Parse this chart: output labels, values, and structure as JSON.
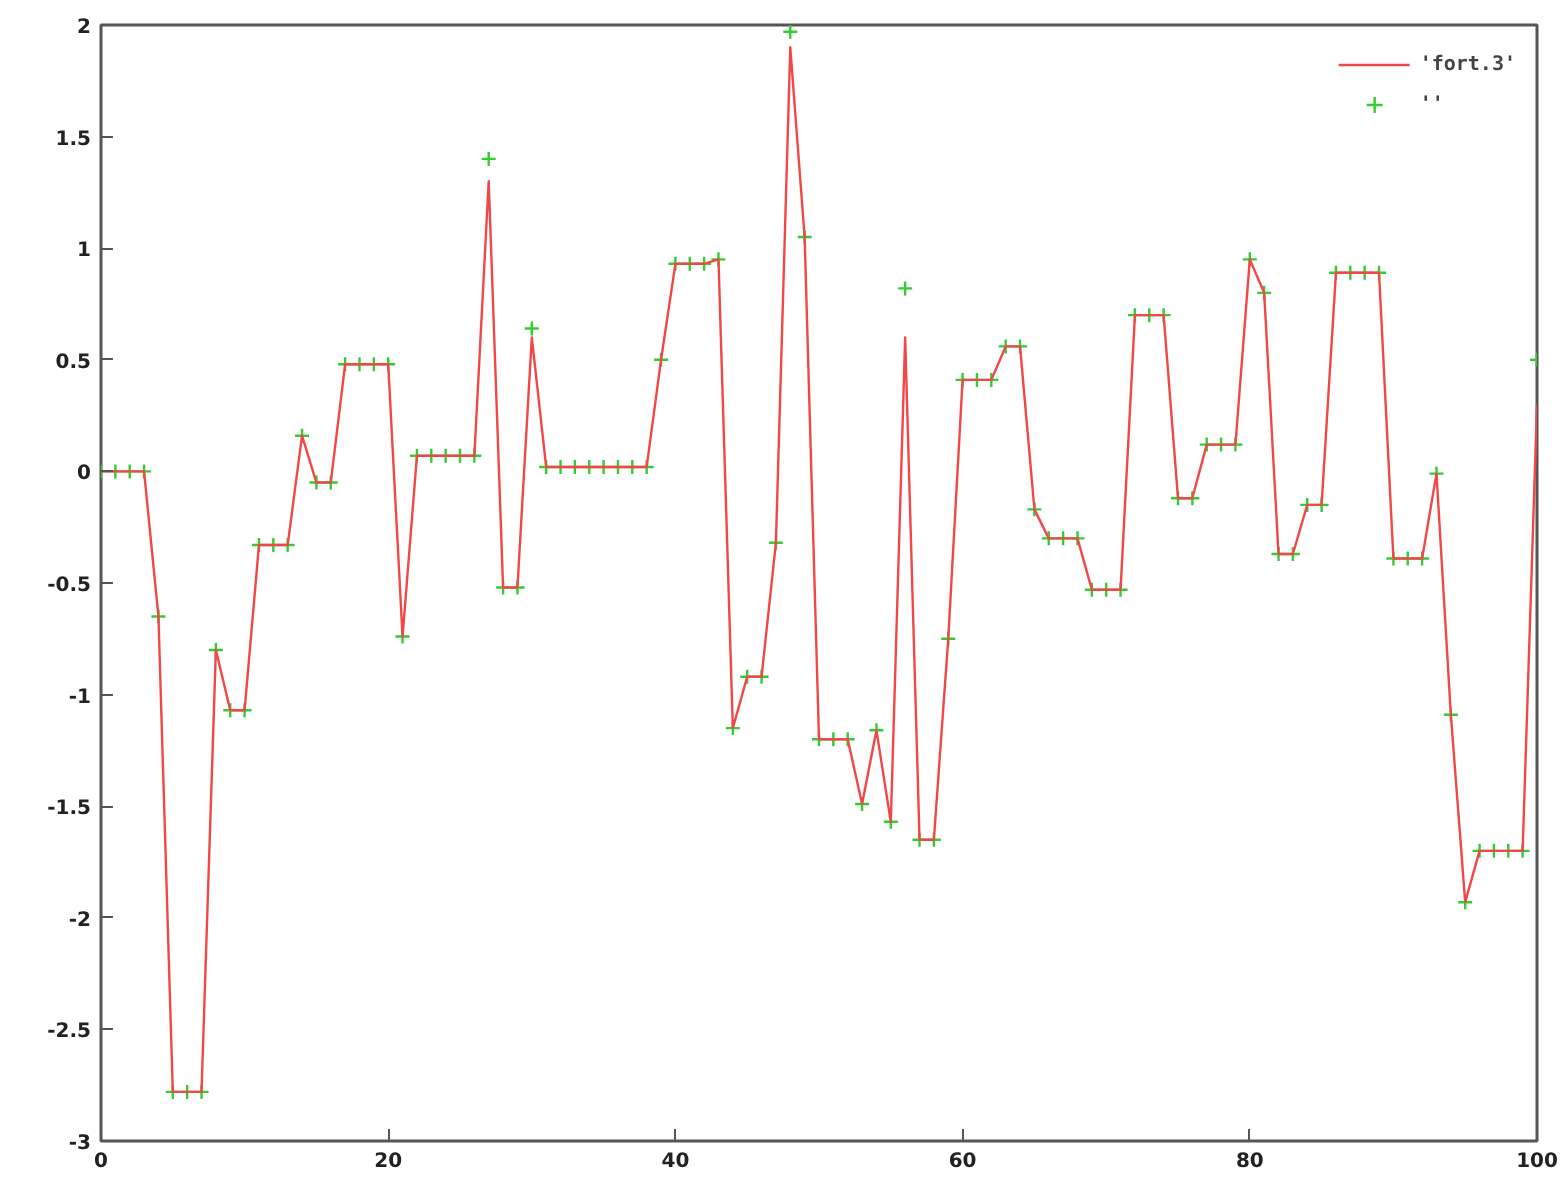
{
  "chart_data": {
    "type": "line",
    "x": [
      0,
      1,
      2,
      3,
      4,
      5,
      6,
      7,
      8,
      9,
      10,
      11,
      12,
      13,
      14,
      15,
      16,
      17,
      18,
      19,
      20,
      21,
      22,
      23,
      24,
      25,
      26,
      27,
      28,
      29,
      30,
      31,
      32,
      33,
      34,
      35,
      36,
      37,
      38,
      39,
      40,
      41,
      42,
      43,
      44,
      45,
      46,
      47,
      48,
      49,
      50,
      51,
      52,
      53,
      54,
      55,
      56,
      57,
      58,
      59,
      60,
      61,
      62,
      63,
      64,
      65,
      66,
      67,
      68,
      69,
      70,
      71,
      72,
      73,
      74,
      75,
      76,
      77,
      78,
      79,
      80,
      81,
      82,
      83,
      84,
      85,
      86,
      87,
      88,
      89,
      90,
      91,
      92,
      93,
      94,
      95,
      96,
      97,
      98,
      99,
      100
    ],
    "series": [
      {
        "name": "'fort.3'",
        "color": "#f04848",
        "marker": "none",
        "line_style": "solid",
        "values": [
          0,
          0,
          0,
          0,
          -0.65,
          -2.78,
          -2.78,
          -2.78,
          -0.8,
          -1.07,
          -1.07,
          -0.33,
          -0.33,
          -0.33,
          0.16,
          -0.05,
          -0.05,
          0.48,
          0.48,
          0.48,
          0.48,
          -0.74,
          0.07,
          0.07,
          0.07,
          0.07,
          0.07,
          1.3,
          -0.52,
          -0.52,
          0.6,
          0.02,
          0.02,
          0.02,
          0.02,
          0.02,
          0.02,
          0.02,
          0.02,
          0.5,
          0.93,
          0.93,
          0.93,
          0.95,
          -1.15,
          -0.92,
          -0.92,
          -0.32,
          1.9,
          1.05,
          -1.2,
          -1.2,
          -1.2,
          -1.49,
          -1.16,
          -1.57,
          0.6,
          -1.65,
          -1.65,
          -0.75,
          0.41,
          0.41,
          0.41,
          0.56,
          0.56,
          -0.17,
          -0.3,
          -0.3,
          -0.3,
          -0.53,
          -0.53,
          -0.53,
          0.7,
          0.7,
          0.7,
          -0.12,
          -0.12,
          0.12,
          0.12,
          0.12,
          0.95,
          0.8,
          -0.37,
          -0.37,
          -0.15,
          -0.15,
          0.89,
          0.89,
          0.89,
          0.89,
          -0.39,
          -0.39,
          -0.39,
          -0.01,
          -1.09,
          -1.93,
          -1.7,
          -1.7,
          -1.7,
          -1.7,
          0.3
        ]
      },
      {
        "name": "''",
        "type": "scatter",
        "color": "#33cc33",
        "marker": "cross",
        "values": [
          0,
          0,
          0,
          0,
          -0.65,
          -2.78,
          -2.78,
          -2.78,
          -0.8,
          -1.07,
          -1.07,
          -0.33,
          -0.33,
          -0.33,
          0.16,
          -0.05,
          -0.05,
          0.48,
          0.48,
          0.48,
          0.48,
          -0.74,
          0.07,
          0.07,
          0.07,
          0.07,
          0.07,
          1.4,
          -0.52,
          -0.52,
          0.64,
          0.02,
          0.02,
          0.02,
          0.02,
          0.02,
          0.02,
          0.02,
          0.02,
          0.5,
          0.93,
          0.93,
          0.93,
          0.95,
          -1.15,
          -0.92,
          -0.92,
          -0.32,
          1.97,
          1.05,
          -1.2,
          -1.2,
          -1.2,
          -1.49,
          -1.16,
          -1.57,
          0.82,
          -1.65,
          -1.65,
          -0.75,
          0.41,
          0.41,
          0.41,
          0.56,
          0.56,
          -0.17,
          -0.3,
          -0.3,
          -0.3,
          -0.53,
          -0.53,
          -0.53,
          0.7,
          0.7,
          0.7,
          -0.12,
          -0.12,
          0.12,
          0.12,
          0.12,
          0.95,
          0.8,
          -0.37,
          -0.37,
          -0.15,
          -0.15,
          0.89,
          0.89,
          0.89,
          0.89,
          -0.39,
          -0.39,
          -0.39,
          -0.01,
          -1.09,
          -1.93,
          -1.7,
          -1.7,
          -1.7,
          -1.7,
          0.5
        ]
      }
    ],
    "xlim": [
      0,
      100
    ],
    "ylim": [
      -3,
      2
    ],
    "xticks": [
      0,
      20,
      40,
      60,
      80,
      100
    ],
    "yticks": [
      -3,
      -2.5,
      -2,
      -1.5,
      -1,
      -0.5,
      0,
      0.5,
      1,
      1.5,
      2
    ],
    "grid": false,
    "legend": "top right"
  }
}
